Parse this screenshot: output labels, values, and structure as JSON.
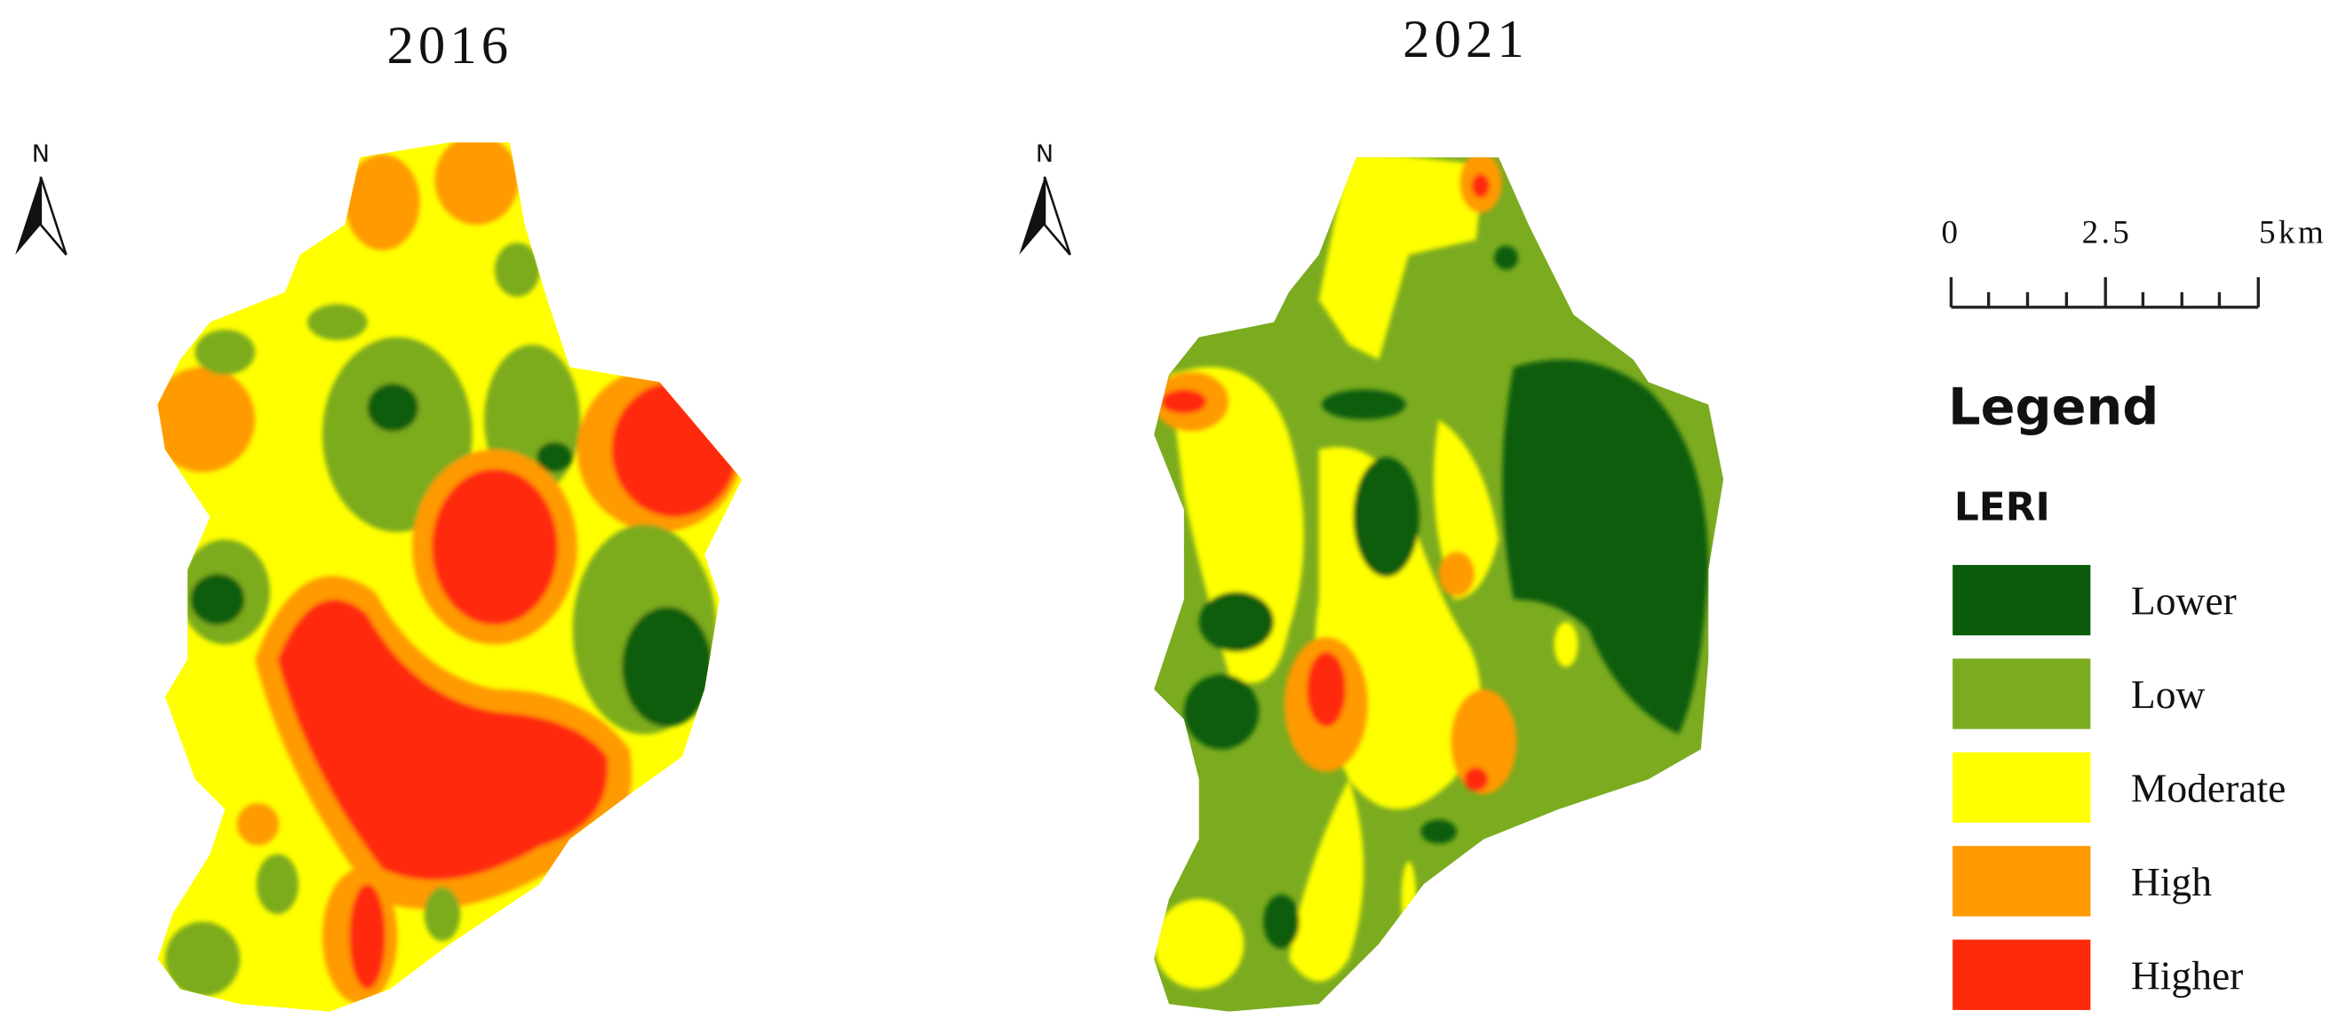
{
  "maps": [
    {
      "title": "2016"
    },
    {
      "title": "2021"
    }
  ],
  "north_label": "N",
  "scale_bar": {
    "labels": [
      "0",
      "2.5",
      "5km"
    ]
  },
  "legend": {
    "title": "Legend",
    "subtitle": "LERI",
    "classes": [
      {
        "label": "Lower",
        "color": "#0b5d0b"
      },
      {
        "label": "Low",
        "color": "#7bab1f"
      },
      {
        "label": "Moderate",
        "color": "#ffff00"
      },
      {
        "label": "High",
        "color": "#ff9a00"
      },
      {
        "label": "Higher",
        "color": "#ff2a0a"
      }
    ]
  }
}
